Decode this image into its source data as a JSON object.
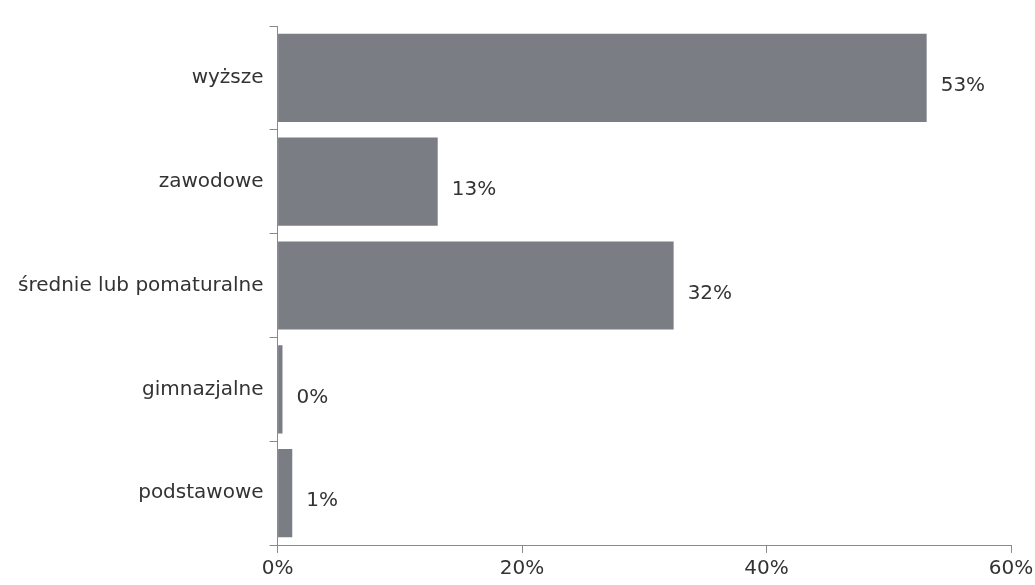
{
  "chart_data": {
    "type": "bar",
    "orientation": "horizontal",
    "categories": [
      "wyższe",
      "zawodowe",
      "średnie lub pomaturalne",
      "gimnazjalne",
      "podstawowe"
    ],
    "values": [
      53.1,
      13.1,
      32.4,
      0.4,
      1.2
    ],
    "color": "#7a7d84",
    "value_labels": [
      "53%",
      "13%",
      "32%",
      "0%",
      "1%"
    ],
    "xlim": [
      0,
      60
    ],
    "xticks": [
      {
        "value": 0,
        "label": "0%"
      },
      {
        "value": 20,
        "label": "20%"
      },
      {
        "value": 40,
        "label": "40%"
      },
      {
        "value": 60,
        "label": "60%"
      }
    ],
    "grid": false,
    "legend": false
  }
}
